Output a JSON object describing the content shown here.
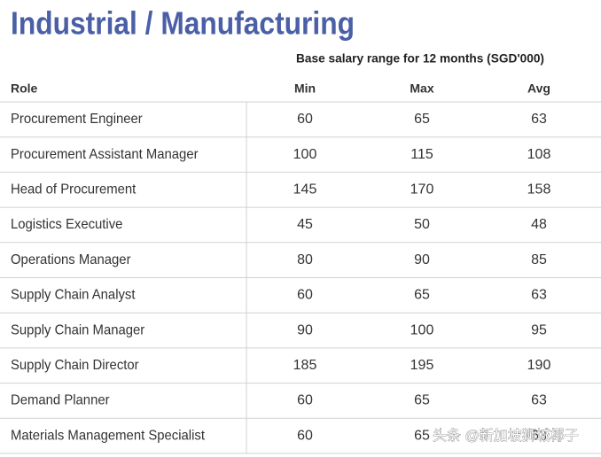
{
  "header": {
    "title": "Industrial / Manufacturing",
    "subtitle": "Base salary range for 12 months (SGD'000)"
  },
  "table": {
    "columns": [
      "Role",
      "Min",
      "Max",
      "Avg"
    ],
    "rows": [
      [
        "Procurement Engineer",
        60,
        65,
        63
      ],
      [
        "Procurement Assistant Manager",
        100,
        115,
        108
      ],
      [
        "Head of Procurement",
        145,
        170,
        158
      ],
      [
        "Logistics Executive",
        45,
        50,
        48
      ],
      [
        "Operations Manager",
        80,
        90,
        85
      ],
      [
        "Supply Chain Analyst",
        60,
        65,
        63
      ],
      [
        "Supply Chain Manager",
        90,
        100,
        95
      ],
      [
        "Supply Chain Director",
        185,
        195,
        190
      ],
      [
        "Demand Planner",
        60,
        65,
        63
      ],
      [
        "Materials Management Specialist",
        60,
        65,
        63
      ]
    ]
  },
  "watermark": "头条 @新加坡狮城椰子"
}
